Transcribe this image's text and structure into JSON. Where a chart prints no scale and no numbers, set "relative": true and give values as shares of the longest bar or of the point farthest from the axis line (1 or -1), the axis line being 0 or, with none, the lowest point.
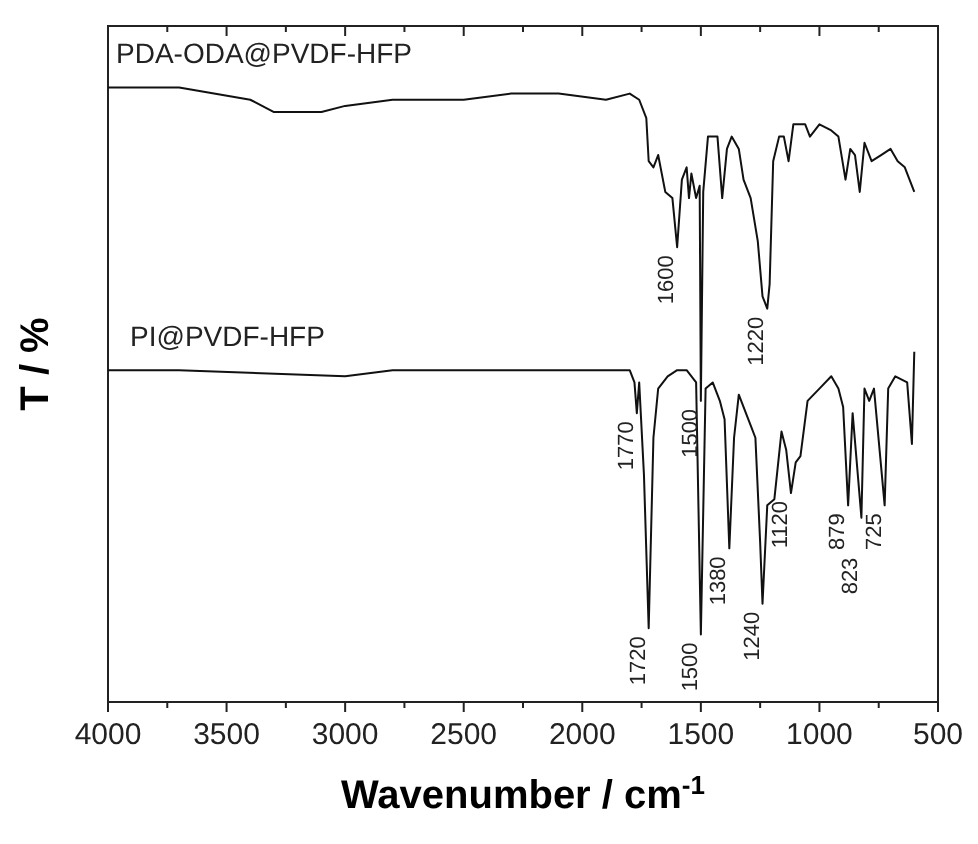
{
  "chart_data": {
    "type": "line",
    "relative": true,
    "xlabel": "Wavenumber / cm$^{-1}$",
    "ylabel": "T / %",
    "grid": false,
    "marker": "none",
    "line_style": "solid",
    "xlim": [
      4000,
      500
    ],
    "xticks": [
      4000,
      {
        "value": 3750,
        "label": null
      },
      3500,
      {
        "value": 3250,
        "label": null
      },
      3000,
      {
        "value": 2750,
        "label": null
      },
      2500,
      {
        "value": 2250,
        "label": null
      },
      2000,
      {
        "value": 1750,
        "label": null
      },
      1500,
      {
        "value": 1250,
        "label": null
      },
      1000,
      {
        "value": 750,
        "label": null
      },
      500
    ],
    "series": [
      {
        "name": "PDA-ODA@PVDF-HFP",
        "color": "#111111",
        "x": [
          4000,
          3700,
          3400,
          3300,
          3100,
          3000,
          2800,
          2500,
          2300,
          2100,
          1900,
          1800,
          1760,
          1730,
          1720,
          1700,
          1680,
          1650,
          1620,
          1600,
          1580,
          1560,
          1550,
          1540,
          1520,
          1505,
          1500,
          1490,
          1470,
          1450,
          1430,
          1410,
          1390,
          1370,
          1340,
          1320,
          1290,
          1260,
          1240,
          1220,
          1210,
          1195,
          1170,
          1150,
          1130,
          1110,
          1060,
          1040,
          1000,
          950,
          920,
          890,
          870,
          850,
          830,
          810,
          780,
          740,
          700,
          670,
          640,
          620,
          600
        ],
        "values": [
          1.0,
          1.0,
          0.98,
          0.96,
          0.96,
          0.97,
          0.98,
          0.98,
          0.99,
          0.99,
          0.98,
          0.99,
          0.98,
          0.95,
          0.88,
          0.87,
          0.89,
          0.83,
          0.82,
          0.74,
          0.85,
          0.87,
          0.82,
          0.86,
          0.82,
          0.84,
          0.49,
          0.83,
          0.92,
          0.92,
          0.92,
          0.82,
          0.9,
          0.92,
          0.9,
          0.85,
          0.82,
          0.75,
          0.66,
          0.64,
          0.68,
          0.88,
          0.92,
          0.92,
          0.88,
          0.94,
          0.94,
          0.92,
          0.94,
          0.93,
          0.92,
          0.85,
          0.9,
          0.89,
          0.83,
          0.91,
          0.88,
          0.89,
          0.9,
          0.88,
          0.87,
          0.85,
          0.83
        ]
      },
      {
        "name": "PI@PVDF-HFP",
        "color": "#111111",
        "x": [
          4000,
          3700,
          3000,
          2800,
          2000,
          1800,
          1780,
          1770,
          1760,
          1740,
          1720,
          1700,
          1680,
          1640,
          1600,
          1560,
          1520,
          1500,
          1480,
          1450,
          1420,
          1400,
          1380,
          1360,
          1340,
          1310,
          1290,
          1270,
          1250,
          1240,
          1220,
          1190,
          1160,
          1140,
          1120,
          1100,
          1080,
          1050,
          1000,
          950,
          920,
          900,
          879,
          860,
          823,
          810,
          790,
          770,
          725,
          710,
          680,
          630,
          610,
          600
        ],
        "values": [
          0.54,
          0.54,
          0.53,
          0.54,
          0.54,
          0.54,
          0.52,
          0.47,
          0.52,
          0.37,
          0.12,
          0.43,
          0.51,
          0.53,
          0.54,
          0.54,
          0.52,
          0.11,
          0.51,
          0.52,
          0.49,
          0.46,
          0.25,
          0.43,
          0.5,
          0.47,
          0.45,
          0.43,
          0.26,
          0.16,
          0.32,
          0.33,
          0.44,
          0.41,
          0.34,
          0.39,
          0.4,
          0.49,
          0.51,
          0.53,
          0.51,
          0.48,
          0.32,
          0.47,
          0.3,
          0.51,
          0.49,
          0.51,
          0.32,
          0.51,
          0.53,
          0.52,
          0.42,
          0.57
        ]
      }
    ],
    "annotations": [
      {
        "text": "1600",
        "x": 1600,
        "y": 0.74
      },
      {
        "text": "1500",
        "x": 1500,
        "y": 0.49
      },
      {
        "text": "1220",
        "x": 1220,
        "y": 0.64
      },
      {
        "text": "1770",
        "x": 1770,
        "y": 0.47
      },
      {
        "text": "1720",
        "x": 1720,
        "y": 0.12
      },
      {
        "text": "1500",
        "x": 1500,
        "y": 0.11
      },
      {
        "text": "1380",
        "x": 1380,
        "y": 0.25
      },
      {
        "text": "1240",
        "x": 1240,
        "y": 0.16
      },
      {
        "text": "1120",
        "x": 1120,
        "y": 0.34
      },
      {
        "text": "879",
        "x": 879,
        "y": 0.32
      },
      {
        "text": "823",
        "x": 823,
        "y": 0.3
      },
      {
        "text": "725",
        "x": 725,
        "y": 0.32
      }
    ]
  }
}
